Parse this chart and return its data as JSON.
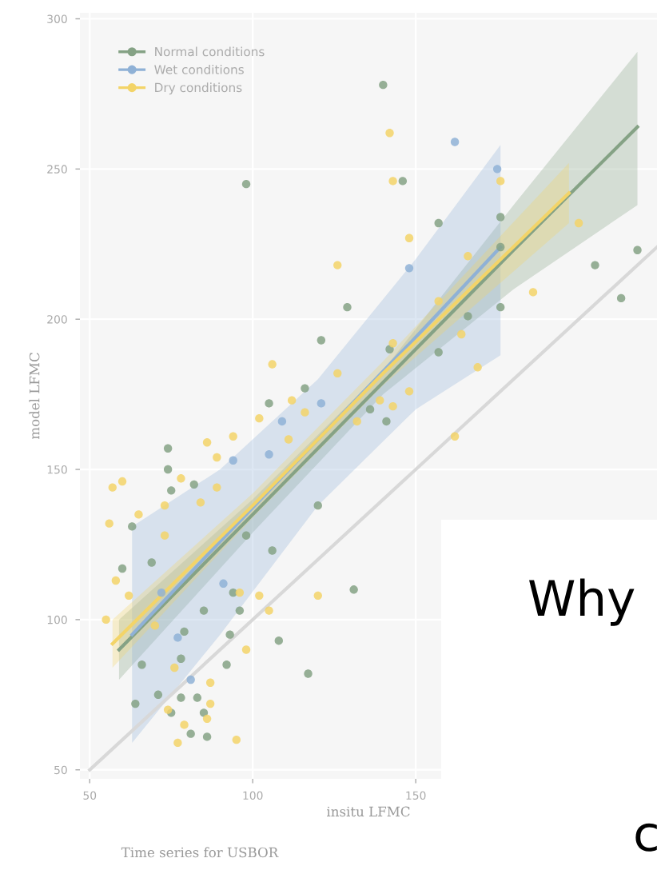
{
  "chart_data": {
    "type": "scatter",
    "xlabel": "insitu LFMC",
    "ylabel": "model LFMC",
    "xlim": [
      47,
      224
    ],
    "ylim": [
      47,
      302
    ],
    "xticks": [
      50,
      100,
      150
    ],
    "yticks": [
      50,
      100,
      150,
      200,
      250,
      300
    ],
    "grid": true,
    "legend": "top left",
    "annotations": [
      "Time series for USBOR",
      "Why",
      "c"
    ],
    "series": [
      {
        "name": "Normal conditions",
        "color": "#85a285",
        "marker": "circle",
        "x": [
          140,
          98,
          146,
          157,
          176,
          176,
          205,
          213,
          218,
          176,
          129,
          121,
          166,
          142,
          157,
          116,
          105,
          136,
          141,
          74,
          74,
          82,
          75,
          63,
          69,
          60,
          98,
          106,
          120,
          94,
          96,
          85,
          131,
          108,
          117,
          93,
          92,
          79,
          78,
          66,
          71,
          78,
          83,
          75,
          64,
          81,
          86,
          85
        ],
        "values": [
          278,
          245,
          246,
          232,
          234,
          224,
          218,
          207,
          223,
          204,
          204,
          193,
          201,
          190,
          189,
          177,
          172,
          170,
          166,
          157,
          150,
          145,
          143,
          131,
          119,
          117,
          128,
          123,
          138,
          109,
          103,
          103,
          110,
          93,
          82,
          95,
          85,
          96,
          87,
          85,
          75,
          74,
          74,
          69,
          72,
          62,
          61,
          69
        ]
      },
      {
        "name": "Wet conditions",
        "color": "#8fb1d6",
        "marker": "circle",
        "x": [
          162,
          175,
          148,
          121,
          109,
          94,
          105,
          91,
          77,
          81,
          72
        ],
        "values": [
          259,
          250,
          217,
          172,
          166,
          153,
          155,
          112,
          94,
          80,
          109
        ]
      },
      {
        "name": "Dry conditions",
        "color": "#f3d468",
        "marker": "circle",
        "x": [
          142,
          143,
          176,
          148,
          126,
          166,
          186,
          200,
          157,
          164,
          169,
          143,
          126,
          106,
          112,
          116,
          102,
          94,
          148,
          143,
          139,
          162,
          132,
          57,
          56,
          73,
          55,
          58,
          62,
          89,
          86,
          84,
          102,
          96,
          105,
          120,
          98,
          87,
          87,
          86,
          79,
          77,
          95,
          73,
          78,
          89,
          111,
          70,
          76,
          74,
          60,
          65
        ],
        "values": [
          262,
          246,
          246,
          227,
          218,
          221,
          209,
          232,
          206,
          195,
          184,
          192,
          182,
          185,
          173,
          169,
          167,
          161,
          176,
          171,
          173,
          161,
          166,
          144,
          132,
          128,
          100,
          113,
          108,
          154,
          159,
          139,
          108,
          109,
          103,
          108,
          90,
          79,
          72,
          67,
          65,
          59,
          60,
          138,
          147,
          144,
          160,
          98,
          84,
          70,
          146,
          135
        ]
      },
      {
        "color": "#85a285",
        "type": "line",
        "x": [
          59,
          100,
          140,
          180,
          218
        ],
        "values": [
          90,
          135,
          179,
          223,
          264
        ],
        "lower": [
          80,
          129,
          175,
          210,
          238
        ],
        "upper": [
          100,
          140,
          183,
          238,
          289
        ]
      },
      {
        "color": "#8fb1d6",
        "type": "line",
        "x": [
          63,
          90,
          120,
          150,
          176
        ],
        "values": [
          95,
          126,
          160,
          194,
          224
        ],
        "lower": [
          59,
          95,
          138,
          170,
          188
        ],
        "upper": [
          131,
          150,
          180,
          220,
          258
        ]
      },
      {
        "color": "#f3d468",
        "type": "line",
        "x": [
          57,
          100,
          140,
          197
        ],
        "values": [
          92,
          138,
          182,
          242
        ],
        "lower": [
          84,
          134,
          178,
          232
        ],
        "upper": [
          100,
          142,
          186,
          252
        ]
      },
      {
        "color": "#d8d8d8",
        "type": "line",
        "x": [
          50,
          224
        ],
        "values": [
          50,
          224
        ]
      }
    ]
  }
}
